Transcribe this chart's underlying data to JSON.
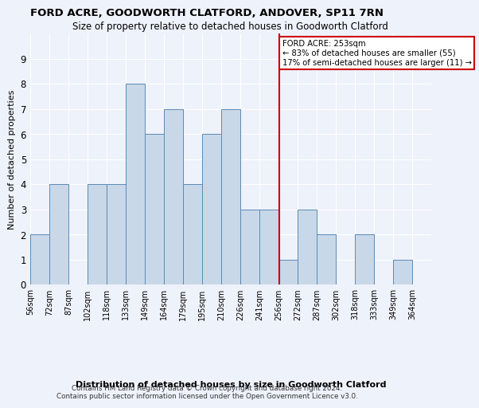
{
  "title1": "FORD ACRE, GOODWORTH CLATFORD, ANDOVER, SP11 7RN",
  "title2": "Size of property relative to detached houses in Goodworth Clatford",
  "xlabel": "Distribution of detached houses by size in Goodworth Clatford",
  "ylabel": "Number of detached properties",
  "categories": [
    "56sqm",
    "72sqm",
    "87sqm",
    "102sqm",
    "118sqm",
    "133sqm",
    "149sqm",
    "164sqm",
    "179sqm",
    "195sqm",
    "210sqm",
    "226sqm",
    "241sqm",
    "256sqm",
    "272sqm",
    "287sqm",
    "302sqm",
    "318sqm",
    "333sqm",
    "349sqm",
    "364sqm"
  ],
  "n_bars": 21,
  "values": [
    2,
    4,
    0,
    4,
    4,
    8,
    6,
    7,
    4,
    6,
    7,
    3,
    3,
    1,
    3,
    2,
    0,
    2,
    0,
    1,
    0
  ],
  "bar_color": "#c8d8e8",
  "bar_edge_color": "#5b8ab5",
  "vertical_line_index": 13.06,
  "vertical_line_color": "#cc0000",
  "annotation_title": "FORD ACRE: 253sqm",
  "annotation_line1": "← 83% of detached houses are smaller (55)",
  "annotation_line2": "17% of semi-detached houses are larger (11) →",
  "annotation_box_color": "#cc0000",
  "ylim": [
    0,
    10
  ],
  "yticks": [
    0,
    1,
    2,
    3,
    4,
    5,
    6,
    7,
    8,
    9
  ],
  "background_color": "#eef2fb",
  "grid_color": "#ffffff",
  "footer1": "Contains HM Land Registry data © Crown copyright and database right 2024.",
  "footer2": "Contains public sector information licensed under the Open Government Licence v3.0."
}
